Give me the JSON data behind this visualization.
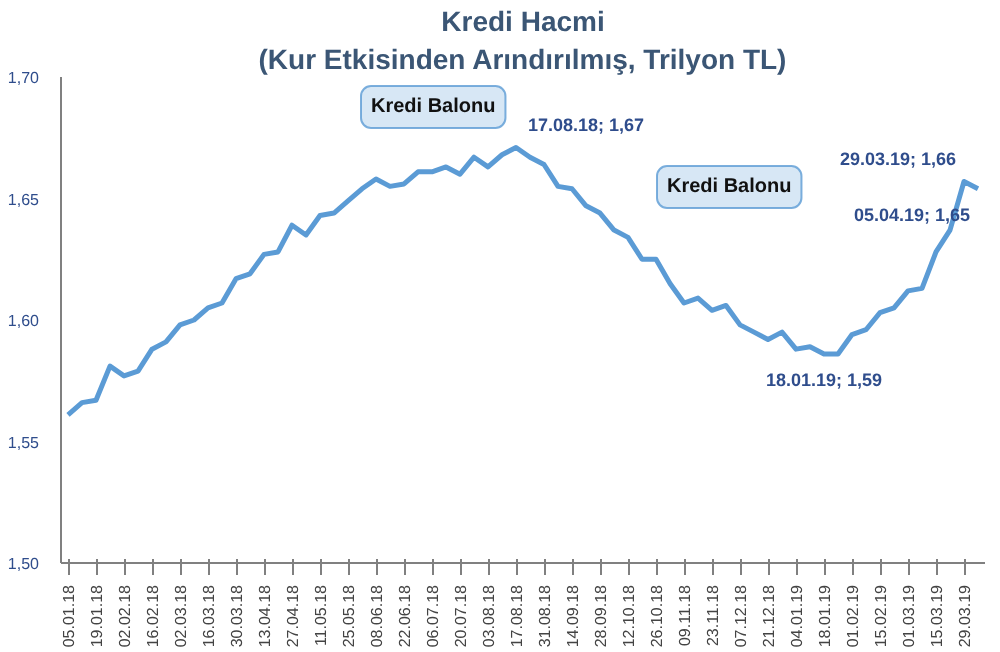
{
  "chart_data": {
    "type": "line",
    "title": "Kredi Hacmi",
    "subtitle": "(Kur Etkisinden Arındırılmış, Trilyon TL)",
    "categories": [
      "05.01.18",
      null,
      "19.01.18",
      null,
      "02.02.18",
      null,
      "16.02.18",
      null,
      "02.03.18",
      null,
      "16.03.18",
      null,
      "30.03.18",
      null,
      "13.04.18",
      null,
      "27.04.18",
      null,
      "11.05.18",
      null,
      "25.05.18",
      null,
      "08.06.18",
      null,
      "22.06.18",
      null,
      "06.07.18",
      null,
      "20.07.18",
      null,
      "03.08.18",
      null,
      "17.08.18",
      null,
      "31.08.18",
      null,
      "14.09.18",
      null,
      "28.09.18",
      null,
      "12.10.18",
      null,
      "26.10.18",
      null,
      "09.11.18",
      null,
      "23.11.18",
      null,
      "07.12.18",
      null,
      "21.12.18",
      null,
      "04.01.19",
      null,
      "18.01.19",
      null,
      "01.02.19",
      null,
      "15.02.19",
      null,
      "01.03.19",
      null,
      "15.03.19",
      null,
      "29.03.19",
      null
    ],
    "series": [
      {
        "color": "#5b9bd5",
        "values": [
          1.561,
          1.566,
          1.567,
          1.581,
          1.577,
          1.579,
          1.588,
          1.591,
          1.598,
          1.6,
          1.605,
          1.607,
          1.617,
          1.619,
          1.627,
          1.628,
          1.639,
          1.635,
          1.643,
          1.644,
          1.649,
          1.654,
          1.658,
          1.655,
          1.656,
          1.661,
          1.661,
          1.663,
          1.66,
          1.667,
          1.663,
          1.668,
          1.671,
          1.667,
          1.664,
          1.655,
          1.654,
          1.647,
          1.644,
          1.637,
          1.634,
          1.625,
          1.625,
          1.615,
          1.607,
          1.609,
          1.604,
          1.606,
          1.598,
          1.595,
          1.592,
          1.595,
          1.588,
          1.589,
          1.586,
          1.586,
          1.594,
          1.596,
          1.603,
          1.605,
          1.612,
          1.613,
          1.628,
          1.637,
          1.657,
          1.654
        ],
        "value_labels": [
          null,
          null,
          null,
          null,
          null,
          null,
          null,
          null,
          null,
          null,
          null,
          null,
          null,
          null,
          null,
          null,
          null,
          null,
          null,
          null,
          null,
          null,
          null,
          null,
          null,
          null,
          null,
          null,
          null,
          null,
          null,
          null,
          "17.08.18; 1,67",
          null,
          null,
          null,
          null,
          null,
          null,
          null,
          null,
          null,
          null,
          null,
          null,
          null,
          null,
          null,
          null,
          null,
          null,
          null,
          null,
          null,
          "18.01.19; 1,59",
          null,
          null,
          null,
          null,
          null,
          null,
          null,
          null,
          null,
          "29.03.19; 1,66",
          "05.04.19; 1,65"
        ]
      }
    ],
    "annotations": [
      "Kredi Balonu",
      "Kredi Balonu"
    ],
    "ylim": [
      1.5,
      1.7
    ],
    "yticks": [
      {
        "value": 1.5,
        "label": "1,50"
      },
      {
        "value": 1.55,
        "label": "1,55"
      },
      {
        "value": 1.6,
        "label": "1,60"
      },
      {
        "value": 1.65,
        "label": "1,65"
      },
      {
        "value": 1.7,
        "label": "1,70"
      }
    ],
    "grid": false,
    "marker": "none",
    "line_style": "solid"
  }
}
